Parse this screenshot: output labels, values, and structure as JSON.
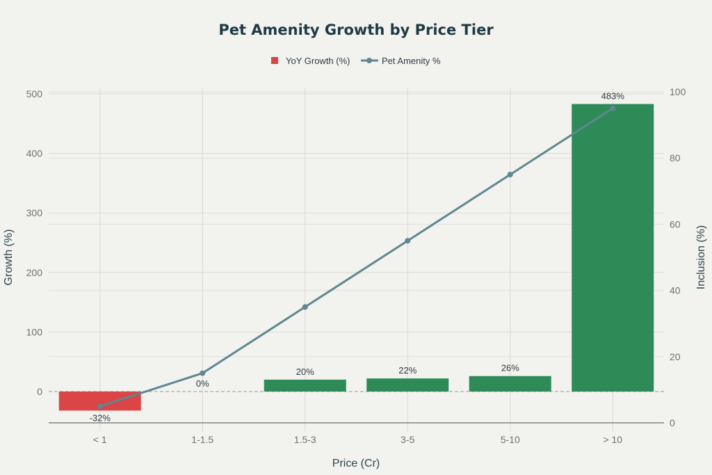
{
  "chart_data": {
    "type": "bar+line",
    "title": "Pet Amenity Growth by Price Tier",
    "xlabel": "Price (Cr)",
    "ylabel_left": "Growth (%)",
    "ylabel_right": "Inclusion (%)",
    "categories": [
      "< 1",
      "1-1.5",
      "1.5-3",
      "3-5",
      "5-10",
      "> 10"
    ],
    "ylim_left": [
      -53,
      510
    ],
    "ylim_right": [
      0,
      100
    ],
    "yticks_left": [
      0,
      100,
      200,
      300,
      400,
      500
    ],
    "yticks_right": [
      0,
      20,
      40,
      60,
      80,
      100
    ],
    "grid": true,
    "legend_position": "top-center",
    "series": [
      {
        "name": "YoY Growth (%)",
        "type": "bar",
        "axis": "left",
        "values": [
          -32,
          0,
          20,
          22,
          26,
          483
        ],
        "labels": [
          "-32%",
          "0%",
          "20%",
          "22%",
          "26%",
          "483%"
        ],
        "positive_color": "#2e8b57",
        "negative_color": "#db4545"
      },
      {
        "name": "Pet Amenity %",
        "type": "line",
        "axis": "right",
        "values": [
          5,
          15,
          35,
          55,
          75,
          95
        ],
        "color": "#5e8791"
      }
    ]
  }
}
